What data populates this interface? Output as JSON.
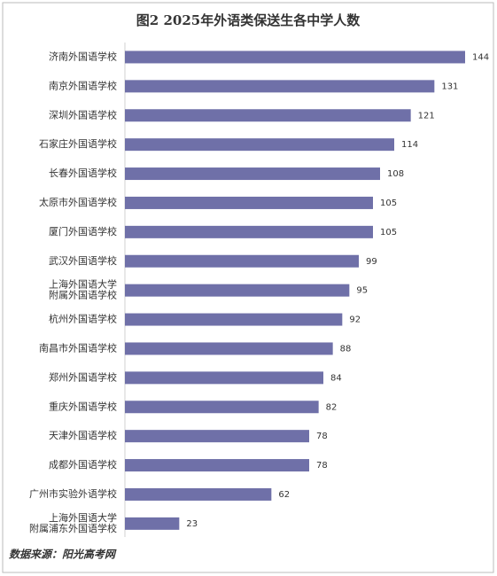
{
  "chart_data": {
    "type": "bar",
    "orientation": "horizontal",
    "title": "图2 2025年外语类保送生各中学人数",
    "categories": [
      "济南外国语学校",
      "南京外国语学校",
      "深圳外国语学校",
      "石家庄外国语学校",
      "长春外国语学校",
      "太原市外国语学校",
      "厦门外国语学校",
      "武汉外国语学校",
      "上海外国语大学\n附属外国语学校",
      "杭州外国语学校",
      "南昌市外国语学校",
      "郑州外国语学校",
      "重庆外国语学校",
      "天津外国语学校",
      "成都外国语学校",
      "广州市实验外语学校",
      "上海外国语大学\n附属浦东外国语学校"
    ],
    "values": [
      144,
      131,
      121,
      114,
      108,
      105,
      105,
      99,
      95,
      92,
      88,
      84,
      82,
      78,
      78,
      62,
      23
    ],
    "color": "#6f70a8",
    "source": "数据来源：阳光高考网"
  }
}
